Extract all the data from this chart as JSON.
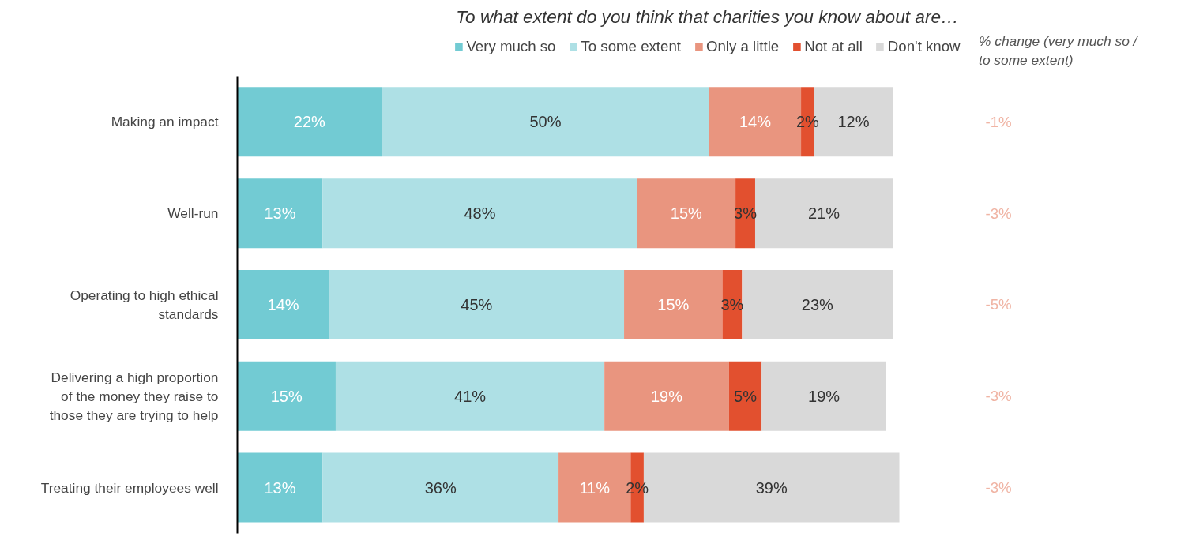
{
  "chart_data": {
    "type": "bar",
    "orientation": "horizontal",
    "stacked": true,
    "legend": "top",
    "grid": false,
    "title": "To what extent do you think that charities you know about are…",
    "categories": [
      "Making an impact",
      "Well-run",
      "Operating to high ethical standards",
      "Delivering a high proportion of the money they raise to those they are trying to help",
      "Treating their employees well"
    ],
    "series": [
      {
        "name": "Very much so",
        "color": "#72cbd3",
        "values": [
          22,
          13,
          14,
          15,
          13
        ],
        "value_labels": [
          "22%",
          "13%",
          "14%",
          "15%",
          "13%"
        ]
      },
      {
        "name": "To some extent",
        "color": "#aee0e5",
        "values": [
          50,
          48,
          45,
          41,
          36
        ],
        "value_labels": [
          "50%",
          "48%",
          "45%",
          "41%",
          "36%"
        ]
      },
      {
        "name": "Only a little",
        "color": "#e9957f",
        "values": [
          14,
          15,
          15,
          19,
          11
        ],
        "value_labels": [
          "14%",
          "15%",
          "15%",
          "19%",
          "11%"
        ]
      },
      {
        "name": "Not at all",
        "color": "#e2502f",
        "values": [
          2,
          3,
          3,
          5,
          2
        ],
        "value_labels": [
          "2%",
          "3%",
          "3%",
          "5%",
          "2%"
        ]
      },
      {
        "name": "Don't know",
        "color": "#d9d9d9",
        "values": [
          12,
          21,
          23,
          19,
          39
        ],
        "value_labels": [
          "12%",
          "21%",
          "23%",
          "19%",
          "39%"
        ]
      }
    ],
    "annotations": [
      "% change (very much so / to some extent)",
      "-1%",
      "-3%",
      "-5%",
      "-3%",
      "-3%"
    ]
  }
}
